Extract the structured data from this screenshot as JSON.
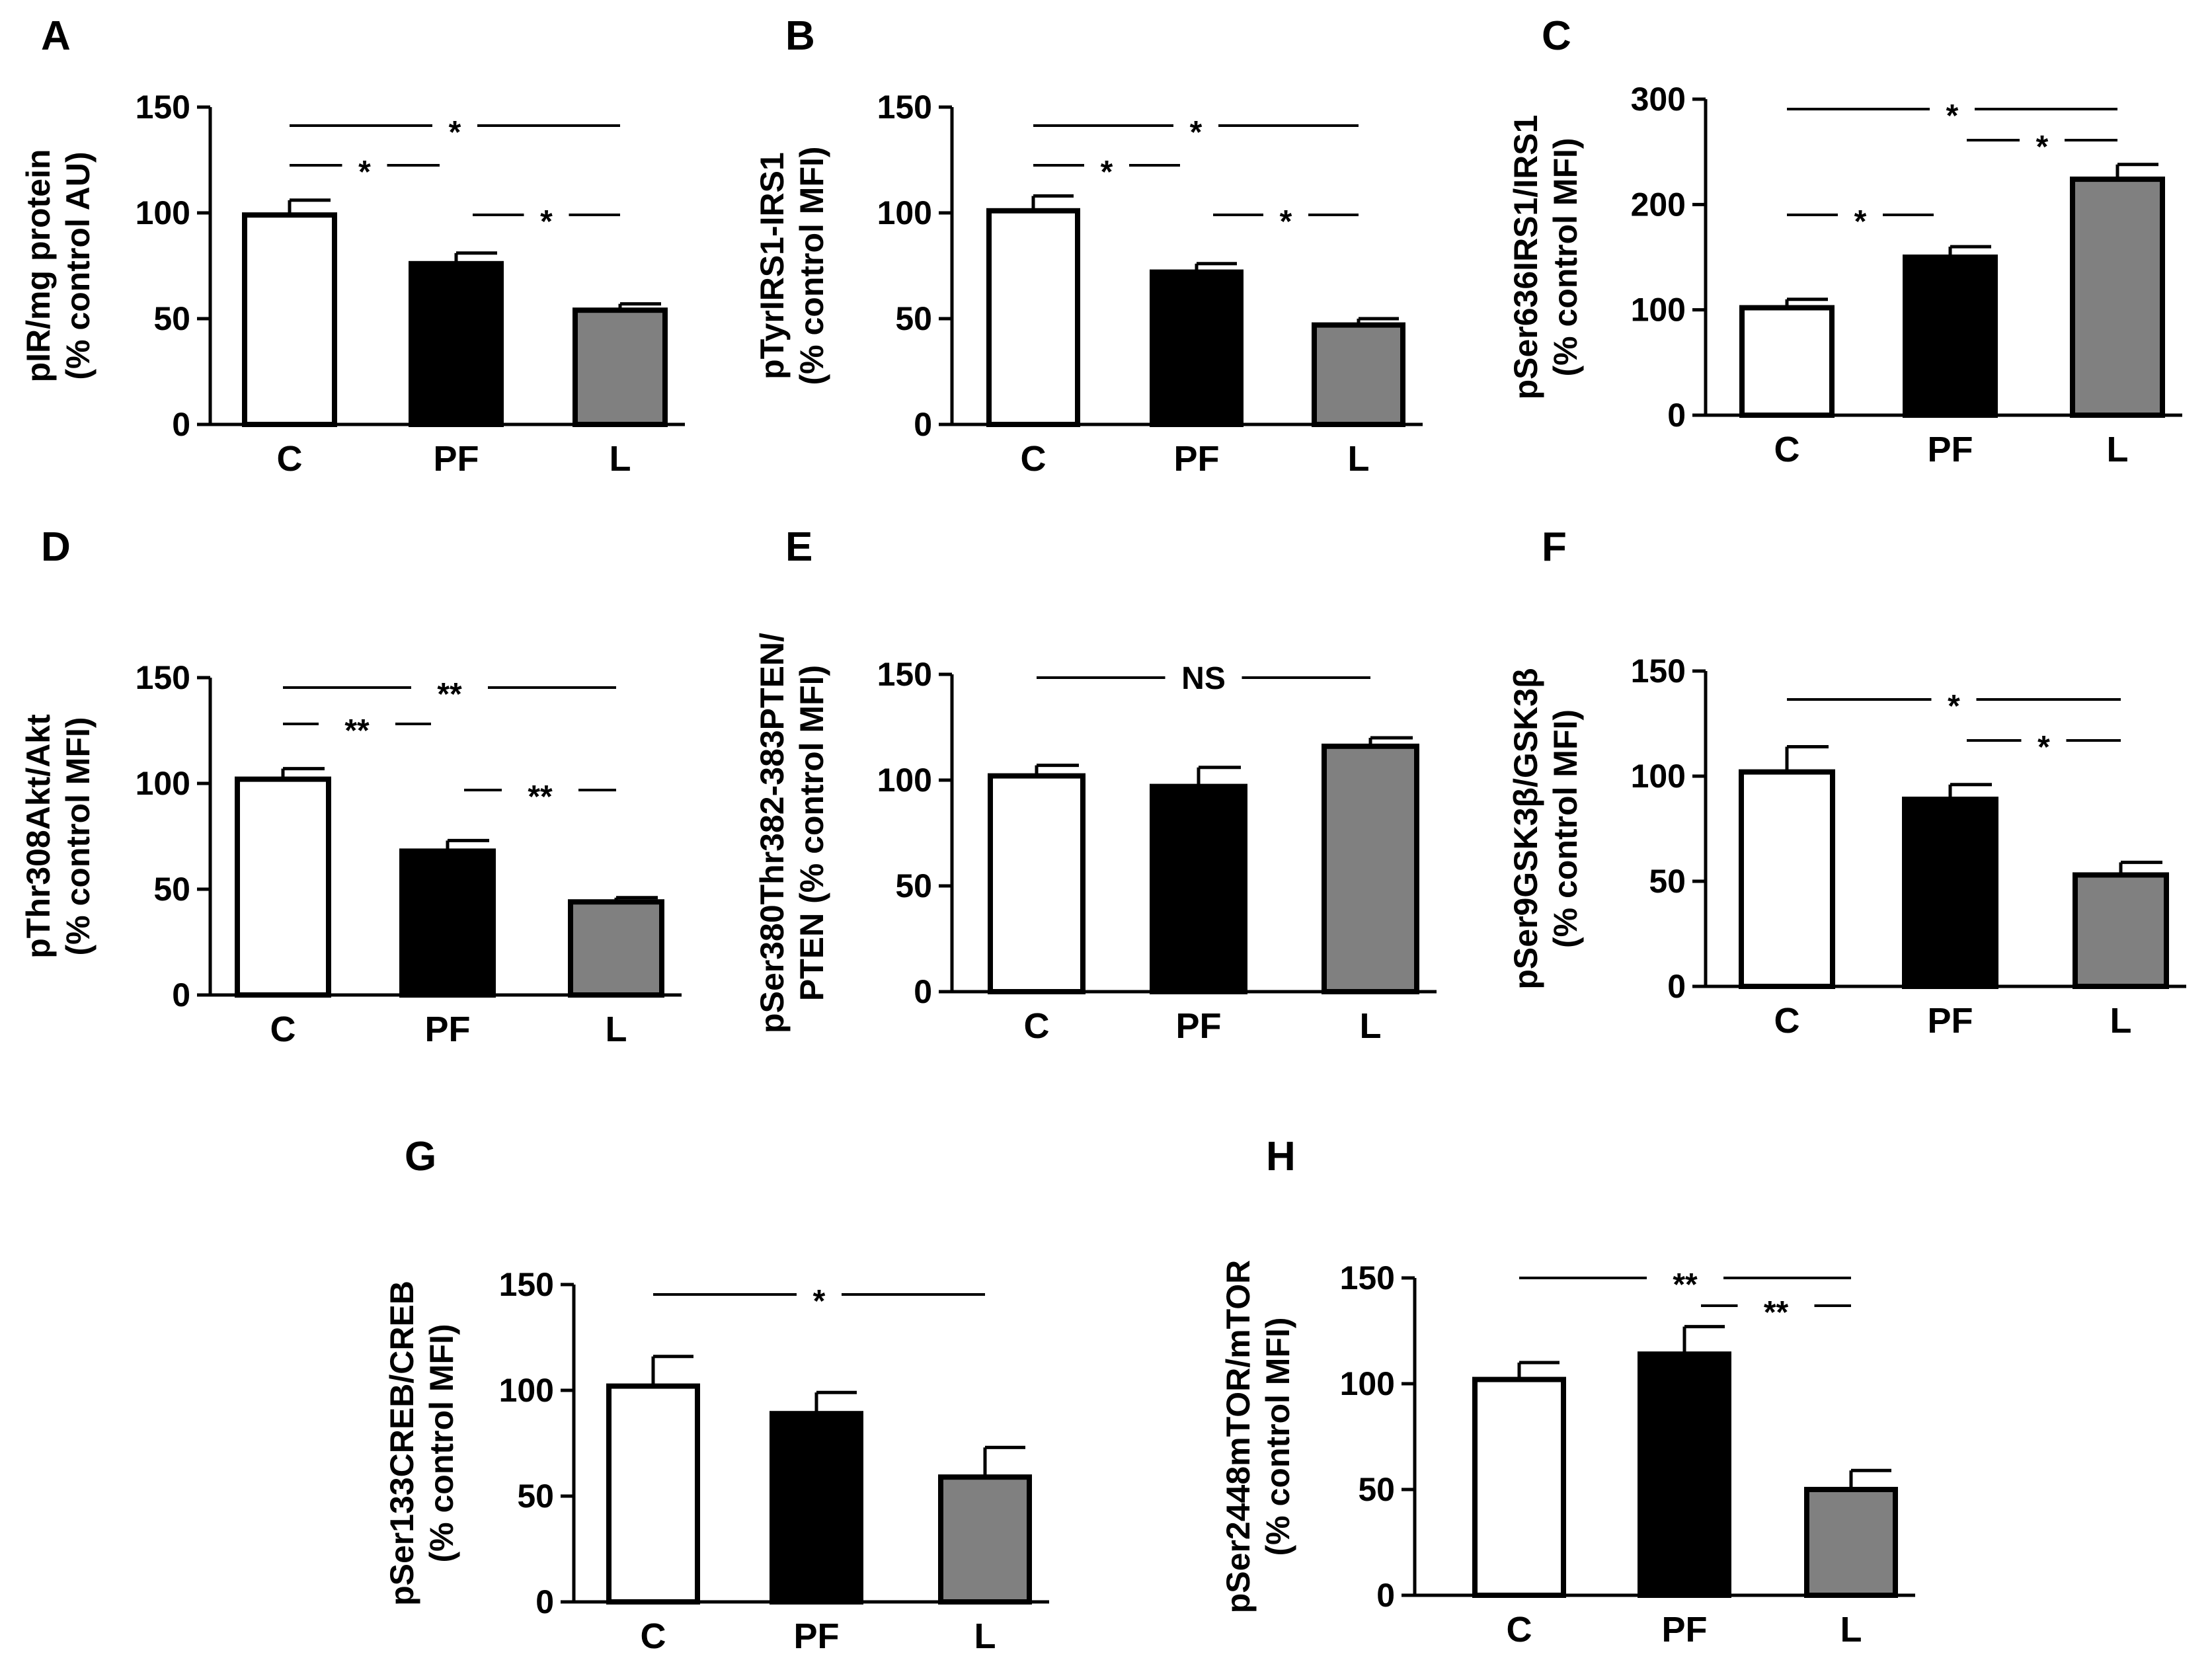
{
  "chart_data": [
    {
      "panel": "A",
      "type": "bar",
      "categories": [
        "C",
        "PF",
        "L"
      ],
      "values": [
        99,
        76,
        54
      ],
      "errors": [
        7,
        5,
        3
      ],
      "colors": [
        "#ffffff",
        "#000000",
        "#808080"
      ],
      "ylim": [
        0,
        150
      ],
      "yticks": [
        0,
        50,
        100,
        150
      ],
      "ylabel": [
        "pIR/mg protein",
        "(% control AU)"
      ],
      "significance": [
        {
          "from": 0,
          "to": 2,
          "label": "*"
        },
        {
          "from": 0,
          "to": 1,
          "label": "*"
        },
        {
          "from": 1,
          "to": 2,
          "label": "*"
        }
      ]
    },
    {
      "panel": "B",
      "type": "bar",
      "categories": [
        "C",
        "PF",
        "L"
      ],
      "values": [
        101,
        72,
        47
      ],
      "errors": [
        7,
        4,
        3
      ],
      "colors": [
        "#ffffff",
        "#000000",
        "#808080"
      ],
      "ylim": [
        0,
        150
      ],
      "yticks": [
        0,
        50,
        100,
        150
      ],
      "ylabel": [
        "pTyrIRS1-IRS1",
        "(% control MFI)"
      ],
      "significance": [
        {
          "from": 0,
          "to": 2,
          "label": "*"
        },
        {
          "from": 0,
          "to": 1,
          "label": "*"
        },
        {
          "from": 1,
          "to": 2,
          "label": "*"
        }
      ]
    },
    {
      "panel": "C",
      "type": "bar",
      "categories": [
        "C",
        "PF",
        "L"
      ],
      "values": [
        102,
        150,
        224
      ],
      "errors": [
        8,
        10,
        14
      ],
      "colors": [
        "#ffffff",
        "#000000",
        "#808080"
      ],
      "ylim": [
        0,
        300
      ],
      "yticks": [
        0,
        100,
        200,
        300
      ],
      "ylabel": [
        "pSer636IRS1/IRS1",
        "(% control MFI)"
      ],
      "significance": [
        {
          "from": 0,
          "to": 2,
          "label": "*"
        },
        {
          "from": 1,
          "to": 2,
          "label": "*"
        },
        {
          "from": 0,
          "to": 1,
          "label": "*"
        }
      ]
    },
    {
      "panel": "D",
      "type": "bar",
      "categories": [
        "C",
        "PF",
        "L"
      ],
      "values": [
        102,
        68,
        44
      ],
      "errors": [
        5,
        5,
        2
      ],
      "colors": [
        "#ffffff",
        "#000000",
        "#808080"
      ],
      "ylim": [
        0,
        150
      ],
      "yticks": [
        0,
        50,
        100,
        150
      ],
      "ylabel": [
        "pThr308Akt/Akt",
        "(% control MFI)"
      ],
      "significance": [
        {
          "from": 0,
          "to": 2,
          "label": "**"
        },
        {
          "from": 0,
          "to": 1,
          "label": "**"
        },
        {
          "from": 1,
          "to": 2,
          "label": "**"
        }
      ]
    },
    {
      "panel": "E",
      "type": "bar",
      "categories": [
        "C",
        "PF",
        "L"
      ],
      "values": [
        102,
        97,
        116
      ],
      "errors": [
        5,
        9,
        4
      ],
      "colors": [
        "#ffffff",
        "#000000",
        "#808080"
      ],
      "ylim": [
        0,
        150
      ],
      "yticks": [
        0,
        50,
        100,
        150
      ],
      "ylabel": [
        "pSer380Thr382-383PTEN/",
        "PTEN (% control MFI)"
      ],
      "significance": [
        {
          "from": 0,
          "to": 2,
          "label": "NS"
        }
      ]
    },
    {
      "panel": "F",
      "type": "bar",
      "categories": [
        "C",
        "PF",
        "L"
      ],
      "values": [
        102,
        89,
        53
      ],
      "errors": [
        12,
        7,
        6
      ],
      "colors": [
        "#ffffff",
        "#000000",
        "#808080"
      ],
      "ylim": [
        0,
        150
      ],
      "yticks": [
        0,
        50,
        100,
        150
      ],
      "ylabel": [
        "pSer9GSK3β/GSK3β",
        "(% control MFI)"
      ],
      "significance": [
        {
          "from": 0,
          "to": 2,
          "label": "*"
        },
        {
          "from": 1,
          "to": 2,
          "label": "*"
        }
      ]
    },
    {
      "panel": "G",
      "type": "bar",
      "categories": [
        "C",
        "PF",
        "L"
      ],
      "values": [
        102,
        89,
        59
      ],
      "errors": [
        14,
        10,
        14
      ],
      "colors": [
        "#ffffff",
        "#000000",
        "#808080"
      ],
      "ylim": [
        0,
        150
      ],
      "yticks": [
        0,
        50,
        100,
        150
      ],
      "ylabel": [
        "pSer133CREB/CREB",
        "(% control MFI)"
      ],
      "significance": [
        {
          "from": 0,
          "to": 2,
          "label": "*"
        }
      ]
    },
    {
      "panel": "H",
      "type": "bar",
      "categories": [
        "C",
        "PF",
        "L"
      ],
      "values": [
        102,
        114,
        50
      ],
      "errors": [
        8,
        13,
        9
      ],
      "colors": [
        "#ffffff",
        "#000000",
        "#808080"
      ],
      "ylim": [
        0,
        150
      ],
      "yticks": [
        0,
        50,
        100,
        150
      ],
      "ylabel": [
        "pSer2448mTOR/mTOR",
        "(% control MFI)"
      ],
      "significance": [
        {
          "from": 0,
          "to": 2,
          "label": "**"
        },
        {
          "from": 1,
          "to": 2,
          "label": "**"
        }
      ]
    }
  ]
}
